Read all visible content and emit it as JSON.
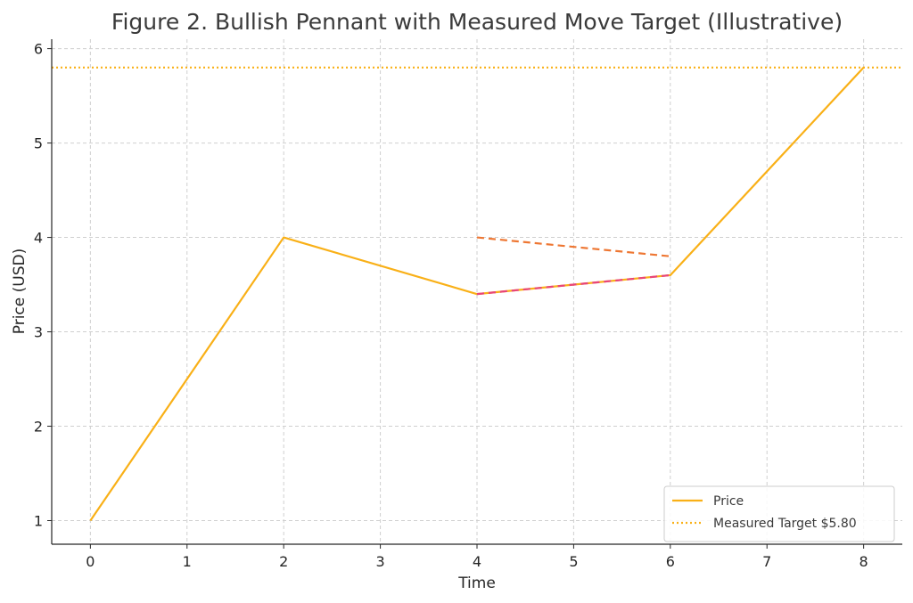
{
  "chart_data": {
    "type": "line",
    "title": "Figure 2. Bullish Pennant with Measured Move Target (Illustrative)",
    "xlabel": "Time",
    "ylabel": "Price (USD)",
    "xlim": [
      -0.4,
      8.4
    ],
    "ylim": [
      0.75,
      6.1
    ],
    "x_ticks": [
      0,
      1,
      2,
      3,
      4,
      5,
      6,
      7,
      8
    ],
    "y_ticks": [
      1,
      2,
      3,
      4,
      5,
      6
    ],
    "grid": true,
    "legend_position": "bottom-right",
    "series": [
      {
        "name": "Price",
        "style": "solid",
        "color": "#f9b017",
        "x": [
          0,
          2,
          4,
          6,
          8
        ],
        "y": [
          1.0,
          4.0,
          3.4,
          3.6,
          5.8
        ]
      }
    ],
    "pennant_lines": [
      {
        "style": "dashed",
        "color": "#ee7733",
        "x": [
          4,
          6
        ],
        "y": [
          4.0,
          3.8
        ]
      },
      {
        "style": "dashed",
        "color": "#e8457a",
        "x": [
          4,
          6
        ],
        "y": [
          3.4,
          3.6
        ]
      }
    ],
    "target_line": {
      "name": "Measured Target $5.80",
      "style": "dotted",
      "color": "#f9b017",
      "y": 5.8
    }
  }
}
